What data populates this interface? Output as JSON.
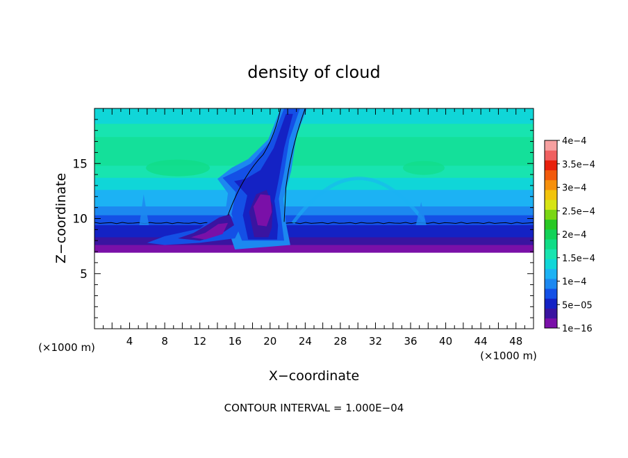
{
  "chart_data": {
    "type": "heatmap",
    "title": "density of cloud",
    "xlabel": "X−coordinate",
    "ylabel": "Z−coordinate",
    "x_unit_label": "(×1000 m)",
    "z_unit_label": "(×1000 m)",
    "xlim": [
      0,
      50
    ],
    "ylim": [
      0,
      20
    ],
    "x_ticks": [
      4,
      8,
      12,
      16,
      20,
      24,
      28,
      32,
      36,
      40,
      44,
      48
    ],
    "y_ticks": [
      5,
      10,
      15
    ],
    "footer": "CONTOUR INTERVAL = 1.000E−04",
    "colorbar": {
      "labels": [
        {
          "value": 1e-16,
          "text": "1e−16"
        },
        {
          "value": 5e-05,
          "text": "5e−05"
        },
        {
          "value": 0.0001,
          "text": "1e−4"
        },
        {
          "value": 0.00015,
          "text": "1.5e−4"
        },
        {
          "value": 0.0002,
          "text": "2e−4"
        },
        {
          "value": 0.00025,
          "text": "2.5e−4"
        },
        {
          "value": 0.0003,
          "text": "3e−4"
        },
        {
          "value": 0.00035,
          "text": "3.5e−4"
        },
        {
          "value": 0.0004,
          "text": "4e−4"
        }
      ],
      "colors": [
        "#7a10a8",
        "#3a14a0",
        "#1422c4",
        "#1450e6",
        "#1c88f0",
        "#1cb2f4",
        "#10d6d8",
        "#18e4b0",
        "#10dc86",
        "#12d258",
        "#28c824",
        "#7ad614",
        "#d6e414",
        "#f2c40c",
        "#f6900c",
        "#f25a0c",
        "#e8200c",
        "#f06060",
        "#f6a0a0"
      ]
    },
    "band_colors": {
      "purple": "#7a10a8",
      "navy": "#3a14a0",
      "blue": "#1422c4",
      "midblue": "#1450e6",
      "sky": "#1c88f0",
      "lightsky": "#1cb2f4",
      "cyan": "#10d6d8",
      "aqua": "#18e4b0",
      "mint": "#14e09a",
      "green": "#10dc86"
    }
  }
}
